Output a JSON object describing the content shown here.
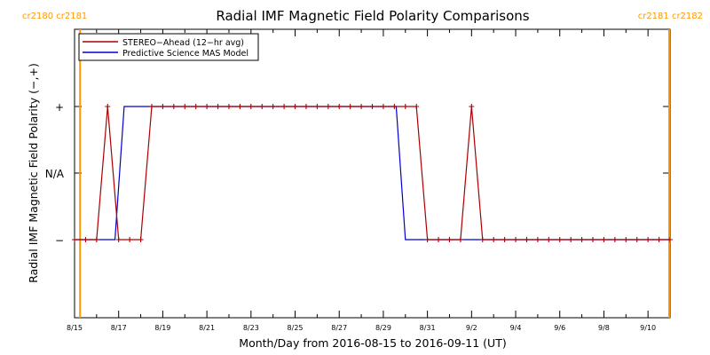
{
  "chart_data": {
    "type": "line",
    "title": "Radial IMF Magnetic Field Polarity Comparisons",
    "xlabel": "Month/Day from 2016-08-15 to 2016-09-11 (UT)",
    "ylabel": "Radial IMF Magnetic Field Polarity (−,+)",
    "xlim": [
      "2016-08-15T00:00",
      "2016-09-11T00:00"
    ],
    "x_ticks": [
      "8/15",
      "8/17",
      "8/19",
      "8/21",
      "8/23",
      "8/25",
      "8/27",
      "8/29",
      "8/31",
      "9/2",
      "9/4",
      "9/6",
      "9/8",
      "9/10"
    ],
    "y_categories": [
      "−",
      "N/A",
      "+"
    ],
    "y_ticks": [
      "−",
      "N/A",
      "+"
    ],
    "grid": false,
    "legend": "top-left",
    "carrington_markers": [
      {
        "x": "2016-08-15T06:00",
        "labels": [
          "cr2180",
          "cr2181"
        ],
        "side": "left"
      },
      {
        "x": "2016-09-10T23:00",
        "labels": [
          "cr2181",
          "cr2182"
        ],
        "side": "right"
      }
    ],
    "marker_color": "#ff9900",
    "series": [
      {
        "name": "STEREO−Ahead (12−hr avg)",
        "color": "#aa0000",
        "marker": "plus",
        "x": [
          "2016-08-15T00:00",
          "2016-08-15T12:00",
          "2016-08-16T00:00",
          "2016-08-16T12:00",
          "2016-08-17T00:00",
          "2016-08-17T12:00",
          "2016-08-18T00:00",
          "2016-08-18T12:00",
          "2016-08-19T00:00",
          "2016-08-19T12:00",
          "2016-08-20T00:00",
          "2016-08-20T12:00",
          "2016-08-21T00:00",
          "2016-08-21T12:00",
          "2016-08-22T00:00",
          "2016-08-22T12:00",
          "2016-08-23T00:00",
          "2016-08-23T12:00",
          "2016-08-24T00:00",
          "2016-08-24T12:00",
          "2016-08-25T00:00",
          "2016-08-25T12:00",
          "2016-08-26T00:00",
          "2016-08-26T12:00",
          "2016-08-27T00:00",
          "2016-08-27T12:00",
          "2016-08-28T00:00",
          "2016-08-28T12:00",
          "2016-08-29T00:00",
          "2016-08-29T12:00",
          "2016-08-30T00:00",
          "2016-08-30T12:00",
          "2016-08-31T00:00",
          "2016-08-31T12:00",
          "2016-09-01T00:00",
          "2016-09-01T12:00",
          "2016-09-02T00:00",
          "2016-09-02T12:00",
          "2016-09-03T00:00",
          "2016-09-03T12:00",
          "2016-09-04T00:00",
          "2016-09-04T12:00",
          "2016-09-05T00:00",
          "2016-09-05T12:00",
          "2016-09-06T00:00",
          "2016-09-06T12:00",
          "2016-09-07T00:00",
          "2016-09-07T12:00",
          "2016-09-08T00:00",
          "2016-09-08T12:00",
          "2016-09-09T00:00",
          "2016-09-09T12:00",
          "2016-09-10T00:00",
          "2016-09-10T12:00",
          "2016-09-11T00:00"
        ],
        "y": [
          "−",
          "−",
          "−",
          "+",
          "−",
          "−",
          "−",
          "+",
          "+",
          "+",
          "+",
          "+",
          "+",
          "+",
          "+",
          "+",
          "+",
          "+",
          "+",
          "+",
          "+",
          "+",
          "+",
          "+",
          "+",
          "+",
          "+",
          "+",
          "+",
          "+",
          "+",
          "+",
          "−",
          "−",
          "−",
          "−",
          "+",
          "−",
          "−",
          "−",
          "−",
          "−",
          "−",
          "−",
          "−",
          "−",
          "−",
          "−",
          "−",
          "−",
          "−",
          "−",
          "−",
          "−",
          "−"
        ]
      },
      {
        "name": "Predictive Science MAS Model",
        "color": "#0000cc",
        "x": [
          "2016-08-15T00:00",
          "2016-08-16T20:00",
          "2016-08-17T06:00",
          "2016-08-29T14:00",
          "2016-08-30T00:00",
          "2016-09-11T00:00"
        ],
        "y": [
          "−",
          "−",
          "+",
          "+",
          "−",
          "−"
        ]
      }
    ]
  }
}
